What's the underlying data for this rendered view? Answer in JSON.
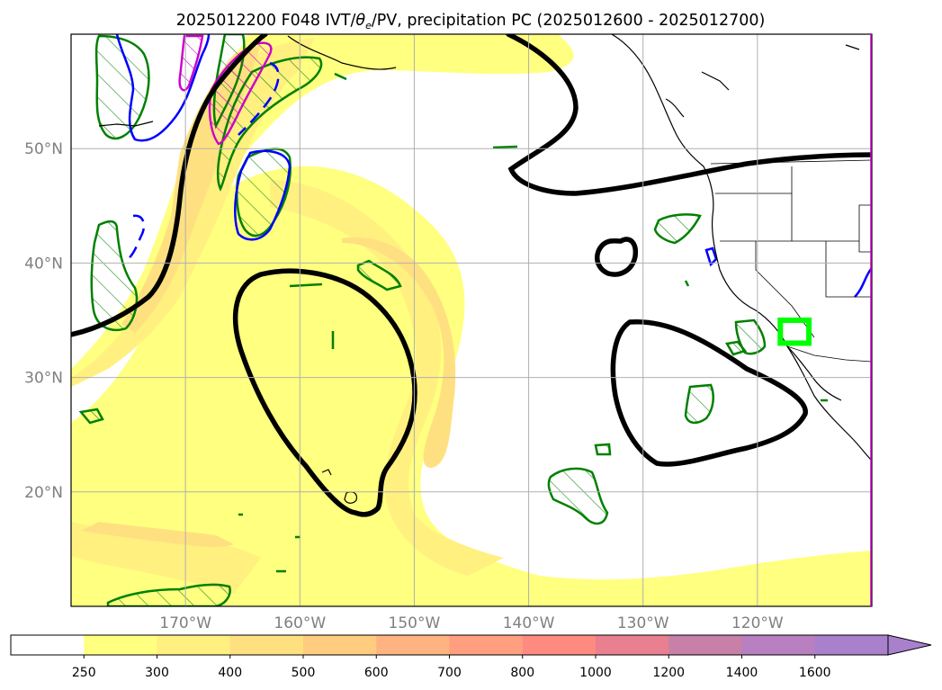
{
  "chart_data": {
    "type": "map",
    "title": "2025012200 F048 IVT/θe/PV, precipitation PC (2025012600 - 2025012700)",
    "title_parts": {
      "prefix": "2025012200 F048 IVT/",
      "theta": "θ",
      "theta_sub": "e",
      "suffix": "/PV, precipitation PC (2025012600 - 2025012700)"
    },
    "lon_range": [
      -180,
      -110
    ],
    "lat_range": [
      10,
      60
    ],
    "lat_ticks": [
      {
        "value": 20,
        "label": "20°N"
      },
      {
        "value": 30,
        "label": "30°N"
      },
      {
        "value": 40,
        "label": "40°N"
      },
      {
        "value": 50,
        "label": "50°N"
      }
    ],
    "lon_ticks": [
      {
        "value": -170,
        "label": "170°W"
      },
      {
        "value": -160,
        "label": "160°W"
      },
      {
        "value": -150,
        "label": "150°W"
      },
      {
        "value": -140,
        "label": "140°W"
      },
      {
        "value": -130,
        "label": "130°W"
      },
      {
        "value": -120,
        "label": "120°W"
      }
    ],
    "grid": true,
    "colorbar": {
      "position": "bottom",
      "extend": "max",
      "levels": [
        250,
        300,
        400,
        500,
        600,
        700,
        800,
        1000,
        1200,
        1400,
        1600
      ],
      "colors": [
        "#ffffff",
        "#ffff80",
        "#fff080",
        "#ffe080",
        "#ffcc80",
        "#ffb380",
        "#ff9f80",
        "#ff8a80",
        "#e88090",
        "#c880a8",
        "#b880c0",
        "#a880cc"
      ]
    },
    "highlight_box": {
      "color": "#00ff00",
      "lon": [
        -118,
        -115.5
      ],
      "lat": [
        33,
        35
      ]
    }
  }
}
